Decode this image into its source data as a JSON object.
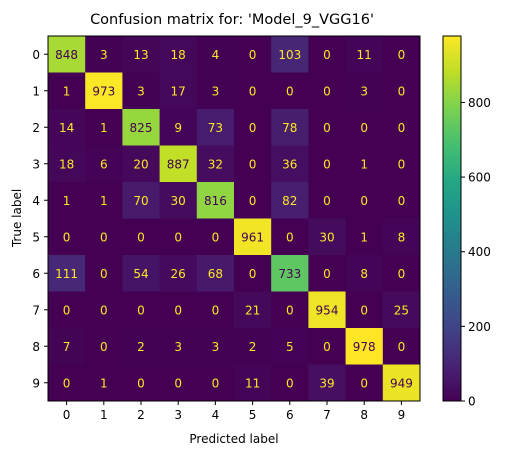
{
  "chart_data": {
    "type": "heatmap",
    "title": "Confusion matrix for: 'Model_9_VGG16'",
    "xlabel": "Predicted label",
    "ylabel": "True label",
    "x_categories": [
      "0",
      "1",
      "2",
      "3",
      "4",
      "5",
      "6",
      "7",
      "8",
      "9"
    ],
    "y_categories": [
      "0",
      "1",
      "2",
      "3",
      "4",
      "5",
      "6",
      "7",
      "8",
      "9"
    ],
    "values": [
      [
        848,
        3,
        13,
        18,
        4,
        0,
        103,
        0,
        11,
        0
      ],
      [
        1,
        973,
        3,
        17,
        3,
        0,
        0,
        0,
        3,
        0
      ],
      [
        14,
        1,
        825,
        9,
        73,
        0,
        78,
        0,
        0,
        0
      ],
      [
        18,
        6,
        20,
        887,
        32,
        0,
        36,
        0,
        1,
        0
      ],
      [
        1,
        1,
        70,
        30,
        816,
        0,
        82,
        0,
        0,
        0
      ],
      [
        0,
        0,
        0,
        0,
        0,
        961,
        0,
        30,
        1,
        8
      ],
      [
        111,
        0,
        54,
        26,
        68,
        0,
        733,
        0,
        8,
        0
      ],
      [
        0,
        0,
        0,
        0,
        0,
        21,
        0,
        954,
        0,
        25
      ],
      [
        7,
        0,
        2,
        3,
        3,
        2,
        5,
        0,
        978,
        0
      ],
      [
        0,
        1,
        0,
        0,
        0,
        11,
        0,
        39,
        0,
        949
      ]
    ],
    "colormap": "viridis",
    "vmin": 0,
    "vmax": 978,
    "colorbar_ticks": [
      0,
      200,
      400,
      600,
      800
    ],
    "grid": false,
    "legend": "colorbar-right"
  }
}
